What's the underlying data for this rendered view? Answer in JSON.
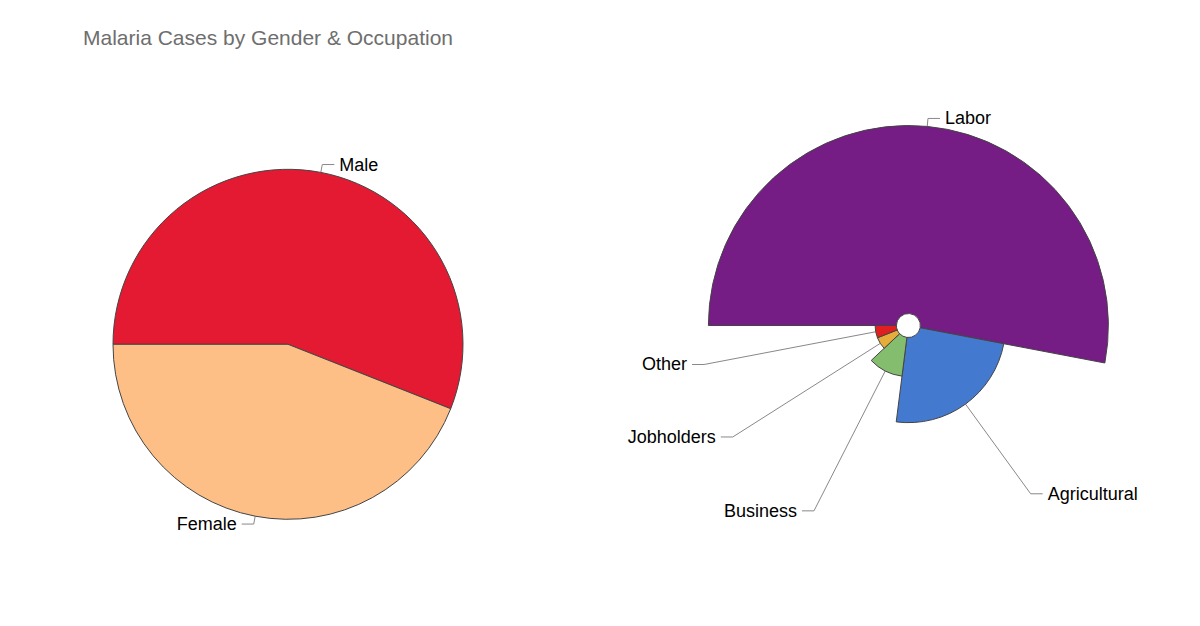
{
  "chart_data": [
    {
      "type": "pie",
      "title": "Malaria Cases by Gender & Occupation",
      "categories": [
        "Male",
        "Female"
      ],
      "values": [
        56,
        44
      ],
      "colors": [
        "#e41a33",
        "#fdbf85"
      ]
    },
    {
      "type": "rose",
      "categories": [
        "Labor",
        "Agricultural",
        "Business",
        "Jobholders",
        "Other"
      ],
      "values": [
        53,
        24,
        11,
        6,
        6
      ],
      "colors": [
        "#751c85",
        "#4379cf",
        "#85bd6f",
        "#e6ad3a",
        "#e02020"
      ]
    }
  ]
}
